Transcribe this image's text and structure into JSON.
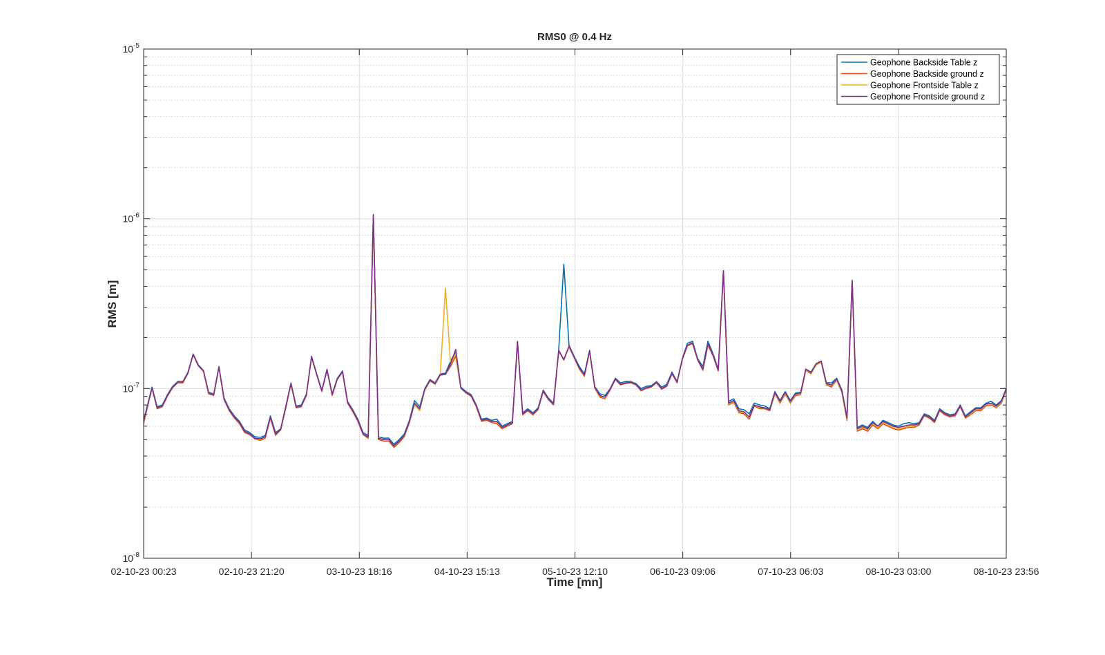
{
  "chart_data": {
    "type": "line",
    "title": "RMS0 @ 0.4 Hz",
    "xlabel": "Time [mn]",
    "ylabel": "RMS [m]",
    "yscale": "log",
    "ylim": [
      1e-08,
      1e-05
    ],
    "xlim": [
      "02-10-23 00:23",
      "08-10-23 23:56"
    ],
    "x_ticks": [
      "02-10-23 00:23",
      "02-10-23 21:20",
      "03-10-23 18:16",
      "04-10-23 15:13",
      "05-10-23 12:10",
      "06-10-23 09:06",
      "07-10-23 06:03",
      "08-10-23 03:00",
      "08-10-23 23:56"
    ],
    "y_ticks": [
      {
        "base": "10",
        "exp": "-8",
        "value": 1e-08
      },
      {
        "base": "10",
        "exp": "-7",
        "value": 1e-07
      },
      {
        "base": "10",
        "exp": "-6",
        "value": 1e-06
      },
      {
        "base": "10",
        "exp": "-5",
        "value": 1e-05
      }
    ],
    "grid": true,
    "legend_position": "top-right",
    "x": [
      "02-10-23 00:23",
      "02-10-23 02:00",
      "02-10-23 03:00",
      "02-10-23 04:00",
      "02-10-23 05:00",
      "02-10-23 06:00",
      "02-10-23 07:00",
      "02-10-23 08:00",
      "02-10-23 09:00",
      "02-10-23 10:00",
      "02-10-23 11:00",
      "02-10-23 12:00",
      "02-10-23 13:00",
      "02-10-23 14:00",
      "02-10-23 15:00",
      "02-10-23 16:00",
      "02-10-23 17:00",
      "02-10-23 18:00",
      "02-10-23 19:00",
      "02-10-23 20:00",
      "02-10-23 21:00",
      "02-10-23 22:00",
      "02-10-23 23:00",
      "03-10-23 00:00",
      "03-10-23 01:00",
      "03-10-23 02:00",
      "03-10-23 03:00",
      "03-10-23 04:00",
      "03-10-23 05:00",
      "03-10-23 06:00",
      "03-10-23 07:00",
      "03-10-23 08:00",
      "03-10-23 09:00",
      "03-10-23 10:00",
      "03-10-23 11:00",
      "03-10-23 12:00",
      "03-10-23 13:00",
      "03-10-23 14:00",
      "03-10-23 15:00",
      "03-10-23 16:00",
      "03-10-23 17:00",
      "03-10-23 18:00",
      "03-10-23 19:00",
      "03-10-23 20:00",
      "03-10-23 21:00",
      "03-10-23 22:00",
      "03-10-23 23:00",
      "04-10-23 00:00",
      "04-10-23 01:00",
      "04-10-23 02:00",
      "04-10-23 03:00",
      "04-10-23 04:00",
      "04-10-23 05:00",
      "04-10-23 06:00",
      "04-10-23 07:00",
      "04-10-23 08:00",
      "04-10-23 09:00",
      "04-10-23 10:00",
      "04-10-23 11:00",
      "04-10-23 12:00",
      "04-10-23 13:00",
      "04-10-23 14:00",
      "04-10-23 15:00",
      "04-10-23 16:00",
      "04-10-23 17:00",
      "04-10-23 18:00",
      "04-10-23 19:00",
      "04-10-23 20:00",
      "04-10-23 21:00",
      "04-10-23 22:00",
      "04-10-23 23:00",
      "05-10-23 00:00",
      "05-10-23 01:00",
      "05-10-23 02:00",
      "05-10-23 03:00",
      "05-10-23 04:00",
      "05-10-23 05:00",
      "05-10-23 06:00",
      "05-10-23 07:00",
      "05-10-23 08:00",
      "05-10-23 09:00",
      "05-10-23 10:00",
      "05-10-23 11:00",
      "05-10-23 12:00",
      "05-10-23 13:00",
      "05-10-23 14:00",
      "05-10-23 15:00",
      "05-10-23 16:00",
      "05-10-23 17:00",
      "05-10-23 18:00",
      "05-10-23 19:00",
      "05-10-23 20:00",
      "05-10-23 21:00",
      "05-10-23 22:00",
      "05-10-23 23:00",
      "06-10-23 00:00",
      "06-10-23 01:00",
      "06-10-23 02:00",
      "06-10-23 03:00",
      "06-10-23 04:00",
      "06-10-23 05:00",
      "06-10-23 06:00",
      "06-10-23 07:00",
      "06-10-23 08:00",
      "06-10-23 09:00",
      "06-10-23 10:00",
      "06-10-23 11:00",
      "06-10-23 12:00",
      "06-10-23 13:00",
      "06-10-23 14:00",
      "06-10-23 15:00",
      "06-10-23 16:00",
      "06-10-23 17:00",
      "06-10-23 18:00",
      "06-10-23 19:00",
      "06-10-23 20:00",
      "06-10-23 21:00",
      "06-10-23 22:00",
      "06-10-23 23:00",
      "07-10-23 00:00",
      "07-10-23 01:00",
      "07-10-23 02:00",
      "07-10-23 03:00",
      "07-10-23 04:00",
      "07-10-23 05:00",
      "07-10-23 06:00",
      "07-10-23 07:00",
      "07-10-23 08:00",
      "07-10-23 09:00",
      "07-10-23 10:00",
      "07-10-23 11:00",
      "07-10-23 12:00",
      "07-10-23 13:00",
      "07-10-23 14:00",
      "07-10-23 15:00",
      "07-10-23 16:00",
      "07-10-23 17:00",
      "07-10-23 18:00",
      "07-10-23 19:00",
      "07-10-23 20:00",
      "07-10-23 21:00",
      "07-10-23 22:00",
      "07-10-23 23:00",
      "08-10-23 00:00",
      "08-10-23 01:00",
      "08-10-23 02:00",
      "08-10-23 03:00",
      "08-10-23 04:00",
      "08-10-23 05:00",
      "08-10-23 06:00",
      "08-10-23 07:00",
      "08-10-23 08:00",
      "08-10-23 09:00",
      "08-10-23 10:00",
      "08-10-23 11:00",
      "08-10-23 12:00",
      "08-10-23 13:00",
      "08-10-23 14:00",
      "08-10-23 15:00",
      "08-10-23 16:00",
      "08-10-23 17:00",
      "08-10-23 18:00",
      "08-10-23 19:00",
      "08-10-23 20:00",
      "08-10-23 21:00",
      "08-10-23 22:00",
      "08-10-23 23:00",
      "08-10-23 23:56"
    ],
    "series": [
      {
        "name": "Geophone Backside Table z",
        "color": "#0072BD",
        "values": [
          6.5e-08,
          1.02e-07,
          7.8e-08,
          8e-08,
          9.2e-08,
          1.03e-07,
          1.1e-07,
          1.1e-07,
          1.25e-07,
          1.6e-07,
          1.38e-07,
          1.28e-07,
          9.5e-08,
          9.3e-08,
          1.35e-07,
          8.8e-08,
          7.6e-08,
          6.9e-08,
          6.4e-08,
          5.7e-08,
          5.5e-08,
          5.2e-08,
          5.15e-08,
          5.3e-08,
          6.9e-08,
          5.5e-08,
          5.8e-08,
          7.9e-08,
          1.08e-07,
          7.9e-08,
          8e-08,
          9.3e-08,
          1.55e-07,
          1.22e-07,
          9.8e-08,
          1.3e-07,
          9.3e-08,
          1.15e-07,
          1.27e-07,
          8.4e-08,
          7.5e-08,
          6.6e-08,
          5.5e-08,
          5.3e-08,
          1.06e-06,
          5.2e-08,
          5.1e-08,
          5.1e-08,
          4.7e-08,
          5e-08,
          5.4e-08,
          6.5e-08,
          8.5e-08,
          7.8e-08,
          1e-07,
          1.13e-07,
          1.08e-07,
          1.22e-07,
          1.23e-07,
          1.45e-07,
          1.65e-07,
          1.02e-07,
          9.6e-08,
          9.2e-08,
          8e-08,
          6.6e-08,
          6.7e-08,
          6.5e-08,
          6.6e-08,
          6e-08,
          6.2e-08,
          6.4e-08,
          1.9e-07,
          7.2e-08,
          7.6e-08,
          7.2e-08,
          7.7e-08,
          9.8e-08,
          8.8e-08,
          8.2e-08,
          1.7e-07,
          5.4e-07,
          1.8e-07,
          1.55e-07,
          1.35e-07,
          1.22e-07,
          1.68e-07,
          1.03e-07,
          9.3e-08,
          9.1e-08,
          1e-07,
          1.15e-07,
          1.08e-07,
          1.1e-07,
          1.1e-07,
          1.07e-07,
          1e-07,
          1.03e-07,
          1.04e-07,
          1.1e-07,
          1.02e-07,
          1.06e-07,
          1.25e-07,
          1.1e-07,
          1.5e-07,
          1.85e-07,
          1.9e-07,
          1.5e-07,
          1.35e-07,
          1.9e-07,
          1.6e-07,
          1.3e-07,
          4.95e-07,
          8.4e-08,
          8.7e-08,
          7.6e-08,
          7.5e-08,
          7.1e-08,
          8.2e-08,
          8e-08,
          7.9e-08,
          7.6e-08,
          9.6e-08,
          8.5e-08,
          9.6e-08,
          8.5e-08,
          9.4e-08,
          9.5e-08,
          1.3e-07,
          1.25e-07,
          1.4e-07,
          1.45e-07,
          1.08e-07,
          1.08e-07,
          1.15e-07,
          9.8e-08,
          6.8e-08,
          4.35e-07,
          5.9e-08,
          6.1e-08,
          5.9e-08,
          6.4e-08,
          6e-08,
          6.5e-08,
          6.3e-08,
          6.1e-08,
          6e-08,
          6.2e-08,
          6.3e-08,
          6.2e-08,
          6.3e-08,
          7.1e-08,
          6.9e-08,
          6.5e-08,
          7.6e-08,
          7.2e-08,
          7e-08,
          7.1e-08,
          8e-08,
          6.9e-08,
          7.3e-08,
          7.7e-08,
          7.7e-08,
          8.2e-08,
          8.4e-08,
          8e-08,
          8.5e-08,
          1e-07
        ]
      },
      {
        "name": "Geophone Backside ground z",
        "color": "#D95319",
        "values": [
          6.2e-08,
          1.01e-07,
          7.6e-08,
          7.8e-08,
          9e-08,
          1.01e-07,
          1.08e-07,
          1.08e-07,
          1.23e-07,
          1.58e-07,
          1.36e-07,
          1.26e-07,
          9.3e-08,
          9.1e-08,
          1.33e-07,
          8.6e-08,
          7.4e-08,
          6.7e-08,
          6.2e-08,
          5.5e-08,
          5.35e-08,
          5.05e-08,
          4.95e-08,
          5.1e-08,
          6.7e-08,
          5.3e-08,
          5.7e-08,
          7.7e-08,
          1.06e-07,
          7.7e-08,
          7.8e-08,
          9.1e-08,
          1.53e-07,
          1.2e-07,
          9.6e-08,
          1.28e-07,
          9.1e-08,
          1.13e-07,
          1.25e-07,
          8.2e-08,
          7.3e-08,
          6.4e-08,
          5.35e-08,
          5.1e-08,
          1.04e-06,
          5e-08,
          4.9e-08,
          4.9e-08,
          4.5e-08,
          4.8e-08,
          5.2e-08,
          6.3e-08,
          8.1e-08,
          7.5e-08,
          9.8e-08,
          1.11e-07,
          1.06e-07,
          1.2e-07,
          1.21e-07,
          1.35e-07,
          1.55e-07,
          1e-07,
          9.4e-08,
          9e-08,
          7.8e-08,
          6.4e-08,
          6.5e-08,
          6.3e-08,
          6.2e-08,
          5.8e-08,
          6e-08,
          6.2e-08,
          1.88e-07,
          7e-08,
          7.4e-08,
          7e-08,
          7.5e-08,
          9.6e-08,
          8.6e-08,
          8e-08,
          1.66e-07,
          1.47e-07,
          1.76e-07,
          1.52e-07,
          1.3e-07,
          1.18e-07,
          1.65e-07,
          1.01e-07,
          8.9e-08,
          8.7e-08,
          9.8e-08,
          1.13e-07,
          1.05e-07,
          1.07e-07,
          1.08e-07,
          1.05e-07,
          9.7e-08,
          1e-07,
          1.02e-07,
          1.08e-07,
          9.9e-08,
          1.03e-07,
          1.22e-07,
          1.08e-07,
          1.48e-07,
          1.78e-07,
          1.84e-07,
          1.47e-07,
          1.28e-07,
          1.8e-07,
          1.55e-07,
          1.27e-07,
          4.9e-07,
          8e-08,
          8.3e-08,
          7.2e-08,
          7.1e-08,
          6.6e-08,
          7.9e-08,
          7.6e-08,
          7.6e-08,
          7.4e-08,
          9.3e-08,
          8.2e-08,
          9.3e-08,
          8.2e-08,
          9.1e-08,
          9.2e-08,
          1.28e-07,
          1.22e-07,
          1.38e-07,
          1.43e-07,
          1.05e-07,
          1.02e-07,
          1.12e-07,
          9.5e-08,
          6.5e-08,
          4.3e-07,
          5.6e-08,
          5.8e-08,
          5.6e-08,
          6.1e-08,
          5.8e-08,
          6.2e-08,
          6e-08,
          5.8e-08,
          5.7e-08,
          5.8e-08,
          5.9e-08,
          5.9e-08,
          6.1e-08,
          6.9e-08,
          6.7e-08,
          6.3e-08,
          7.4e-08,
          7e-08,
          6.8e-08,
          6.9e-08,
          7.8e-08,
          6.7e-08,
          7e-08,
          7.4e-08,
          7.4e-08,
          7.9e-08,
          8e-08,
          7.7e-08,
          8.2e-08,
          9.8e-08
        ]
      },
      {
        "name": "Geophone Frontside Table z",
        "color": "#EDB120",
        "values": [
          6.3e-08,
          1e-07,
          7.7e-08,
          7.9e-08,
          9.1e-08,
          1.02e-07,
          1.09e-07,
          1.09e-07,
          1.24e-07,
          1.59e-07,
          1.37e-07,
          1.27e-07,
          9.4e-08,
          9.2e-08,
          1.34e-07,
          8.7e-08,
          7.5e-08,
          6.8e-08,
          6.3e-08,
          5.6e-08,
          5.4e-08,
          5.1e-08,
          5e-08,
          5.2e-08,
          6.8e-08,
          5.4e-08,
          5.75e-08,
          7.8e-08,
          1.07e-07,
          7.8e-08,
          7.9e-08,
          9.2e-08,
          1.54e-07,
          1.21e-07,
          9.7e-08,
          1.29e-07,
          9.2e-08,
          1.14e-07,
          1.26e-07,
          8.3e-08,
          7.4e-08,
          6.5e-08,
          5.4e-08,
          5.2e-08,
          1.05e-06,
          5.1e-08,
          5e-08,
          5e-08,
          4.6e-08,
          4.9e-08,
          5.3e-08,
          6.4e-08,
          8e-08,
          7.4e-08,
          9.9e-08,
          1.12e-07,
          1.07e-07,
          1.21e-07,
          3.9e-07,
          1.4e-07,
          1.6e-07,
          1.01e-07,
          9.5e-08,
          9.1e-08,
          7.9e-08,
          6.5e-08,
          6.6e-08,
          6.4e-08,
          6.3e-08,
          5.9e-08,
          6.1e-08,
          6.3e-08,
          1.89e-07,
          7.1e-08,
          7.5e-08,
          7.1e-08,
          7.6e-08,
          9.7e-08,
          8.7e-08,
          8.1e-08,
          1.67e-07,
          1.48e-07,
          1.77e-07,
          1.53e-07,
          1.31e-07,
          1.19e-07,
          1.66e-07,
          1.02e-07,
          9e-08,
          8.8e-08,
          9.9e-08,
          1.14e-07,
          1.06e-07,
          1.08e-07,
          1.09e-07,
          1.06e-07,
          9.8e-08,
          1.01e-07,
          1.03e-07,
          1.09e-07,
          1e-07,
          1.04e-07,
          1.23e-07,
          1.09e-07,
          1.49e-07,
          1.8e-07,
          1.86e-07,
          1.48e-07,
          1.3e-07,
          1.83e-07,
          1.57e-07,
          1.28e-07,
          4.92e-07,
          8.1e-08,
          8.4e-08,
          7.3e-08,
          7.2e-08,
          6.8e-08,
          8e-08,
          7.7e-08,
          7.7e-08,
          7.5e-08,
          9.4e-08,
          8.3e-08,
          9.4e-08,
          8.3e-08,
          9.2e-08,
          9.3e-08,
          1.29e-07,
          1.23e-07,
          1.39e-07,
          1.44e-07,
          1.06e-07,
          1.04e-07,
          1.13e-07,
          9.6e-08,
          6.6e-08,
          4.32e-07,
          5.7e-08,
          5.9e-08,
          5.7e-08,
          6.2e-08,
          5.9e-08,
          6.3e-08,
          6.1e-08,
          5.9e-08,
          5.8e-08,
          5.9e-08,
          6e-08,
          6e-08,
          6.2e-08,
          7e-08,
          6.8e-08,
          6.4e-08,
          7.5e-08,
          7.1e-08,
          6.9e-08,
          7e-08,
          7.9e-08,
          6.8e-08,
          7.1e-08,
          7.5e-08,
          7.5e-08,
          8e-08,
          8.1e-08,
          7.8e-08,
          8.3e-08,
          9.9e-08
        ]
      },
      {
        "name": "Geophone Frontside ground z",
        "color": "#7E2F8E",
        "values": [
          6.4e-08,
          1.01e-07,
          7.7e-08,
          7.9e-08,
          9.1e-08,
          1.02e-07,
          1.09e-07,
          1.09e-07,
          1.24e-07,
          1.59e-07,
          1.37e-07,
          1.27e-07,
          9.4e-08,
          9.2e-08,
          1.34e-07,
          8.7e-08,
          7.5e-08,
          6.8e-08,
          6.3e-08,
          5.6e-08,
          5.4e-08,
          5.1e-08,
          5.05e-08,
          5.2e-08,
          6.8e-08,
          5.4e-08,
          5.75e-08,
          7.8e-08,
          1.07e-07,
          7.8e-08,
          7.9e-08,
          9.2e-08,
          1.54e-07,
          1.21e-07,
          9.7e-08,
          1.29e-07,
          9.2e-08,
          1.14e-07,
          1.26e-07,
          8.3e-08,
          7.4e-08,
          6.5e-08,
          5.4e-08,
          5.2e-08,
          1.06e-06,
          5.1e-08,
          5e-08,
          5e-08,
          4.6e-08,
          4.9e-08,
          5.3e-08,
          6.4e-08,
          8.2e-08,
          7.6e-08,
          9.9e-08,
          1.12e-07,
          1.07e-07,
          1.21e-07,
          1.21e-07,
          1.4e-07,
          1.7e-07,
          1.01e-07,
          9.5e-08,
          9.1e-08,
          7.9e-08,
          6.5e-08,
          6.6e-08,
          6.4e-08,
          6.4e-08,
          5.9e-08,
          6.1e-08,
          6.3e-08,
          1.89e-07,
          7.1e-08,
          7.5e-08,
          7.1e-08,
          7.6e-08,
          9.7e-08,
          8.7e-08,
          8.1e-08,
          1.68e-07,
          1.48e-07,
          1.78e-07,
          1.53e-07,
          1.32e-07,
          1.2e-07,
          1.67e-07,
          1.02e-07,
          9.1e-08,
          8.9e-08,
          9.9e-08,
          1.14e-07,
          1.06e-07,
          1.08e-07,
          1.09e-07,
          1.06e-07,
          9.8e-08,
          1.01e-07,
          1.03e-07,
          1.09e-07,
          1e-07,
          1.04e-07,
          1.23e-07,
          1.09e-07,
          1.49e-07,
          1.8e-07,
          1.86e-07,
          1.48e-07,
          1.3e-07,
          1.84e-07,
          1.57e-07,
          1.28e-07,
          4.93e-07,
          8.2e-08,
          8.5e-08,
          7.4e-08,
          7.3e-08,
          6.8e-08,
          8e-08,
          7.8e-08,
          7.7e-08,
          7.5e-08,
          9.5e-08,
          8.4e-08,
          9.5e-08,
          8.4e-08,
          9.3e-08,
          9.4e-08,
          1.3e-07,
          1.24e-07,
          1.4e-07,
          1.45e-07,
          1.07e-07,
          1.05e-07,
          1.14e-07,
          9.7e-08,
          6.7e-08,
          4.33e-07,
          5.8e-08,
          6e-08,
          5.8e-08,
          6.3e-08,
          6e-08,
          6.4e-08,
          6.2e-08,
          6e-08,
          5.9e-08,
          6e-08,
          6.1e-08,
          6.1e-08,
          6.2e-08,
          7e-08,
          6.8e-08,
          6.4e-08,
          7.5e-08,
          7.1e-08,
          6.9e-08,
          7e-08,
          7.9e-08,
          6.8e-08,
          7.2e-08,
          7.6e-08,
          7.6e-08,
          8.1e-08,
          8.2e-08,
          7.9e-08,
          8.4e-08,
          1e-07
        ]
      }
    ]
  }
}
